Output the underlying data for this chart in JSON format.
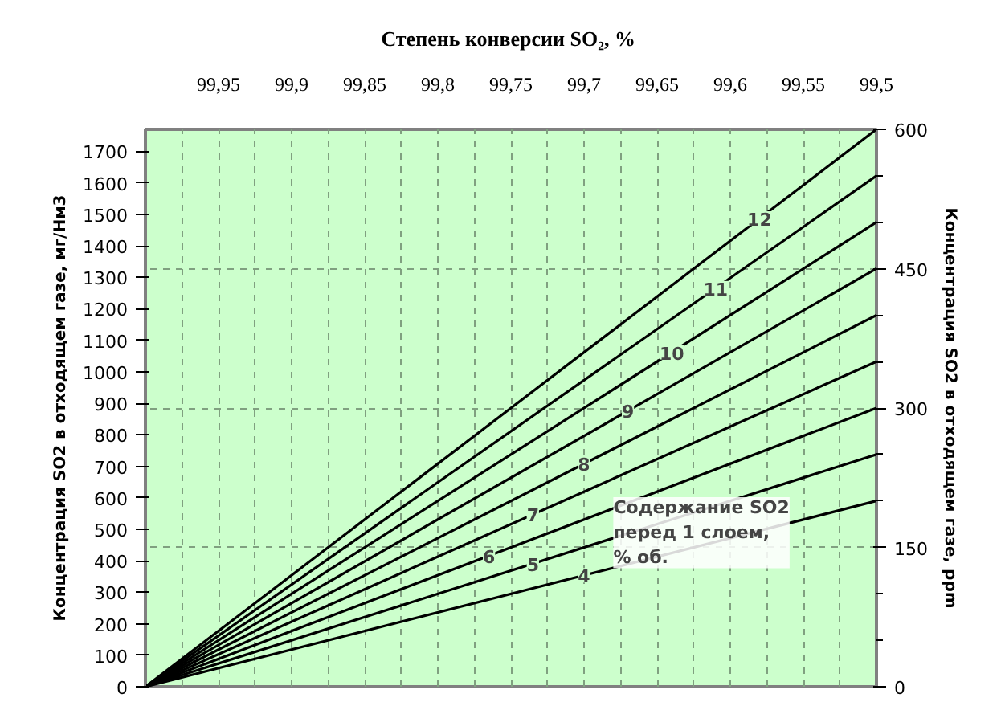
{
  "chart_data": {
    "type": "line",
    "xlabel": "Степень конверсии SO₂,  %",
    "ylabel": "Концентрация SO2 в отходящем газе, мг/Нм3",
    "y2label": "Концентрация SO2 в отходящем газе, ppm",
    "x": [
      100,
      99.5
    ],
    "xlim": [
      100,
      99.5
    ],
    "xticks": [
      {
        "value": 99.95,
        "label": "99,95"
      },
      {
        "value": 99.9,
        "label": "99,9"
      },
      {
        "value": 99.85,
        "label": "99,85"
      },
      {
        "value": 99.8,
        "label": "99,8"
      },
      {
        "value": 99.75,
        "label": "99,75"
      },
      {
        "value": 99.7,
        "label": "99,7"
      },
      {
        "value": 99.65,
        "label": "99,65"
      },
      {
        "value": 99.6,
        "label": "99,6"
      },
      {
        "value": 99.55,
        "label": "99,55"
      },
      {
        "value": 99.5,
        "label": "99,5"
      }
    ],
    "ylim": [
      0,
      1770
    ],
    "yticks": [
      0,
      100,
      200,
      300,
      400,
      500,
      600,
      700,
      800,
      900,
      1000,
      1100,
      1200,
      1300,
      1400,
      1500,
      1600,
      1700
    ],
    "y2lim": [
      0,
      600
    ],
    "y2ticks": [
      0,
      150,
      300,
      450,
      600
    ],
    "grid": true,
    "series": [
      {
        "name": "4",
        "color": "#000000",
        "values": [
          0,
          200
        ],
        "axis": "y2"
      },
      {
        "name": "5",
        "color": "#000000",
        "values": [
          0,
          250
        ],
        "axis": "y2"
      },
      {
        "name": "6",
        "color": "#000000",
        "values": [
          0,
          300
        ],
        "axis": "y2"
      },
      {
        "name": "7",
        "color": "#000000",
        "values": [
          0,
          350
        ],
        "axis": "y2"
      },
      {
        "name": "8",
        "color": "#000000",
        "values": [
          0,
          400
        ],
        "axis": "y2"
      },
      {
        "name": "9",
        "color": "#000000",
        "values": [
          0,
          450
        ],
        "axis": "y2"
      },
      {
        "name": "10",
        "color": "#000000",
        "values": [
          0,
          500
        ],
        "axis": "y2"
      },
      {
        "name": "11",
        "color": "#000000",
        "values": [
          0,
          550
        ],
        "axis": "y2"
      },
      {
        "name": "12",
        "color": "#000000",
        "values": [
          0,
          600
        ],
        "axis": "y2"
      }
    ],
    "annotations": [
      "Содержание SO2\nперед 1 слоем,\n% об."
    ]
  }
}
